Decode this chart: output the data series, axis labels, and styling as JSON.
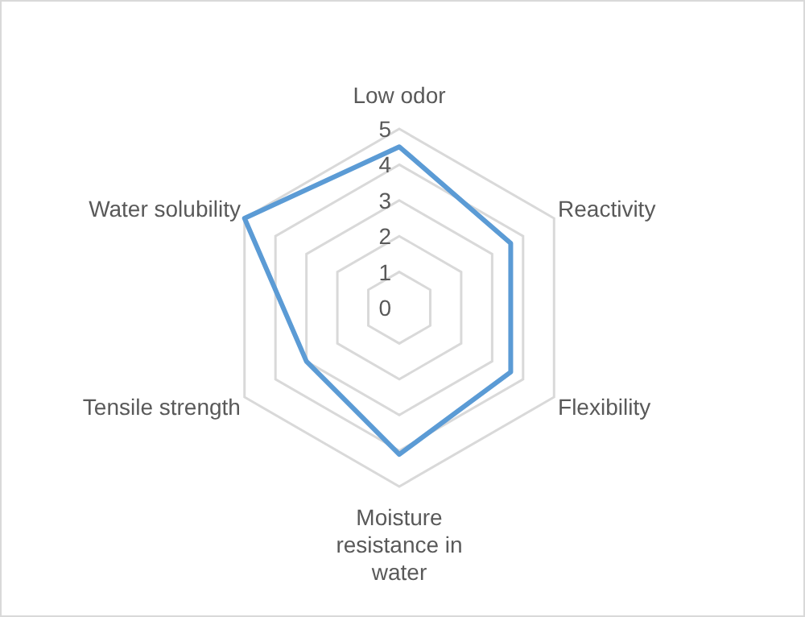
{
  "chart_data": {
    "type": "radar",
    "categories": [
      "Low odor",
      "Reactivity",
      "Flexibility",
      "Moisture resistance in water",
      "Tensile strength",
      "Water solubility"
    ],
    "series": [
      {
        "color": "#5b9bd5",
        "values": [
          4.5,
          3.6,
          3.6,
          4.1,
          3,
          5
        ]
      }
    ],
    "ylim": [
      0,
      5
    ],
    "yticks": [
      0,
      1,
      2,
      3,
      4,
      5
    ],
    "grid": true,
    "marker": "none"
  }
}
